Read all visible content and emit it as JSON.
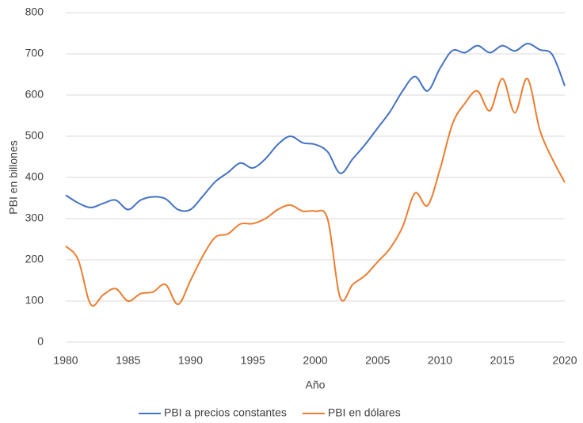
{
  "chart_data": {
    "type": "line",
    "x_label": "Año",
    "y_label": "PBI en billones",
    "x": [
      1980,
      1981,
      1982,
      1983,
      1984,
      1985,
      1986,
      1987,
      1988,
      1989,
      1990,
      1991,
      1992,
      1993,
      1994,
      1995,
      1996,
      1997,
      1998,
      1999,
      2000,
      2001,
      2002,
      2003,
      2004,
      2005,
      2006,
      2007,
      2008,
      2009,
      2010,
      2011,
      2012,
      2013,
      2014,
      2015,
      2016,
      2017,
      2018,
      2019,
      2020
    ],
    "series": [
      {
        "name": "PBI a precios constantes",
        "color": "#4472c4",
        "values": [
          357,
          338,
          327,
          337,
          345,
          322,
          345,
          353,
          348,
          322,
          322,
          355,
          390,
          412,
          435,
          423,
          445,
          480,
          500,
          484,
          480,
          462,
          410,
          445,
          480,
          520,
          560,
          610,
          645,
          610,
          665,
          708,
          703,
          720,
          703,
          720,
          707,
          725,
          710,
          698,
          622
        ]
      },
      {
        "name": "PBI en dólares",
        "color": "#ed7d31",
        "values": [
          233,
          200,
          92,
          115,
          130,
          100,
          118,
          122,
          140,
          92,
          150,
          210,
          255,
          263,
          287,
          288,
          300,
          322,
          333,
          318,
          318,
          298,
          108,
          140,
          162,
          195,
          228,
          280,
          362,
          332,
          420,
          530,
          580,
          610,
          562,
          640,
          557,
          640,
          515,
          445,
          388
        ]
      }
    ],
    "xlim": [
      1980,
      2020
    ],
    "xticks": [
      1980,
      1985,
      1990,
      1995,
      2000,
      2005,
      2010,
      2015,
      2020
    ],
    "ylim": [
      0,
      800
    ],
    "yticks": [
      0,
      100,
      200,
      300,
      400,
      500,
      600,
      700,
      800
    ],
    "grid": true,
    "legend": "bottom",
    "smooth": true
  }
}
